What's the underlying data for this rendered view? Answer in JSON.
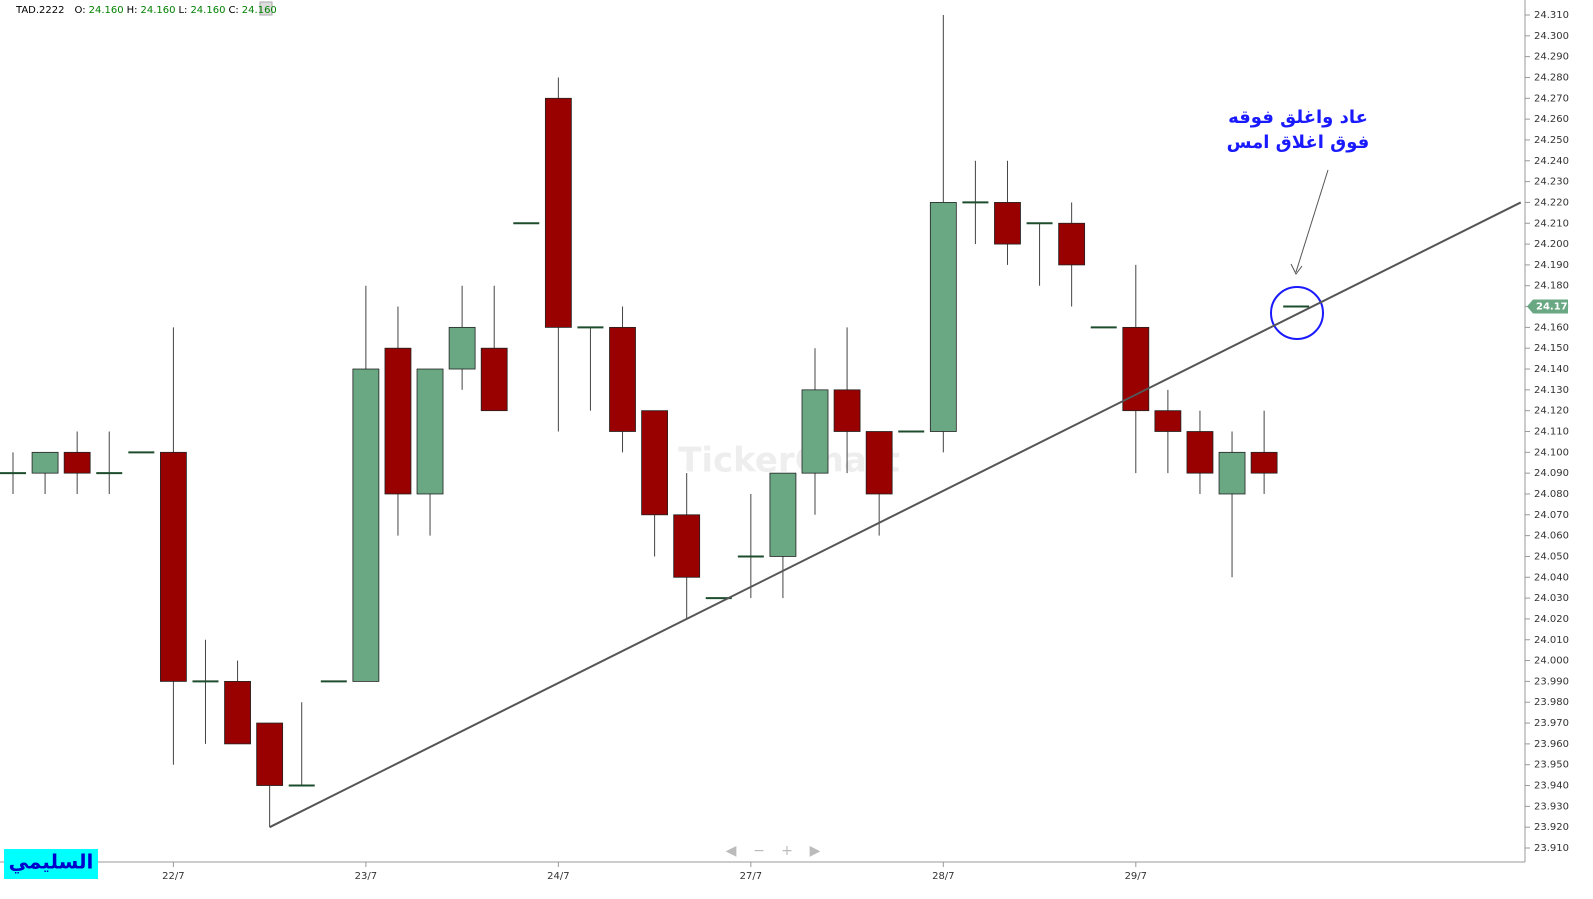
{
  "chart_data": {
    "type": "candlestick",
    "header": [
      "TAD.2222",
      "O:",
      "24.160",
      "H:",
      "24.160",
      "L:",
      "24.160",
      "C:",
      "24.160"
    ],
    "categories": [
      null,
      null,
      null,
      null,
      null,
      "22/7",
      null,
      null,
      null,
      null,
      null,
      "23/7",
      null,
      null,
      null,
      null,
      null,
      "24/7",
      null,
      null,
      null,
      null,
      null,
      "27/7",
      null,
      null,
      null,
      null,
      null,
      "28/7",
      null,
      null,
      null,
      null,
      null,
      "29/7",
      null,
      null,
      null,
      null,
      null
    ],
    "open": [
      24.09,
      24.09,
      24.1,
      24.09,
      24.1,
      24.1,
      23.99,
      23.99,
      23.97,
      23.94,
      23.99,
      23.99,
      24.15,
      24.08,
      24.14,
      24.15,
      24.21,
      24.27,
      24.16,
      24.16,
      24.12,
      24.07,
      24.03,
      24.05,
      24.05,
      24.09,
      24.13,
      24.11,
      24.11,
      24.11,
      24.22,
      24.22,
      24.21,
      24.21,
      24.16,
      24.16,
      24.12,
      24.11,
      24.08,
      24.1,
      24.17
    ],
    "high": [
      24.1,
      24.1,
      24.11,
      24.11,
      24.1,
      24.16,
      24.01,
      24.0,
      23.97,
      23.98,
      23.99,
      24.18,
      24.17,
      24.14,
      24.18,
      24.18,
      24.21,
      24.28,
      24.16,
      24.17,
      24.12,
      24.09,
      24.03,
      24.08,
      24.09,
      24.15,
      24.16,
      24.11,
      24.11,
      24.31,
      24.24,
      24.24,
      24.21,
      24.22,
      24.16,
      24.19,
      24.13,
      24.12,
      24.11,
      24.12,
      24.17
    ],
    "low": [
      24.08,
      24.08,
      24.08,
      24.08,
      24.1,
      23.95,
      23.96,
      23.96,
      23.92,
      23.94,
      23.99,
      23.99,
      24.06,
      24.06,
      24.13,
      24.12,
      24.21,
      24.11,
      24.12,
      24.1,
      24.05,
      24.02,
      24.03,
      24.03,
      24.03,
      24.07,
      24.09,
      24.06,
      24.11,
      24.1,
      24.2,
      24.19,
      24.18,
      24.17,
      24.16,
      24.09,
      24.09,
      24.08,
      24.04,
      24.08,
      24.17
    ],
    "close": [
      24.09,
      24.1,
      24.09,
      24.09,
      24.1,
      23.99,
      23.99,
      23.96,
      23.94,
      23.94,
      23.99,
      24.14,
      24.08,
      24.14,
      24.16,
      24.12,
      24.21,
      24.16,
      24.16,
      24.11,
      24.07,
      24.04,
      24.03,
      24.05,
      24.09,
      24.13,
      24.11,
      24.08,
      24.11,
      24.22,
      24.22,
      24.2,
      24.21,
      24.19,
      24.16,
      24.12,
      24.11,
      24.09,
      24.1,
      24.09,
      24.17
    ],
    "up_color": "#6aa884",
    "down_color": "#990000",
    "doji_color": "#1d4d2c",
    "ylim": [
      23.905,
      24.315
    ],
    "yticks": [
      {
        "value": 24.31,
        "label": "24.310"
      },
      {
        "value": 24.3,
        "label": "24.300"
      },
      {
        "value": 24.29,
        "label": "24.290"
      },
      {
        "value": 24.28,
        "label": "24.280"
      },
      {
        "value": 24.27,
        "label": "24.270"
      },
      {
        "value": 24.26,
        "label": "24.260"
      },
      {
        "value": 24.25,
        "label": "24.250"
      },
      {
        "value": 24.24,
        "label": "24.240"
      },
      {
        "value": 24.23,
        "label": "24.230"
      },
      {
        "value": 24.22,
        "label": "24.220"
      },
      {
        "value": 24.21,
        "label": "24.210"
      },
      {
        "value": 24.2,
        "label": "24.200"
      },
      {
        "value": 24.19,
        "label": "24.190"
      },
      {
        "value": 24.18,
        "label": "24.180"
      },
      {
        "value": 24.17,
        "label": "24.170"
      },
      {
        "value": 24.16,
        "label": "24.160"
      },
      {
        "value": 24.15,
        "label": "24.150"
      },
      {
        "value": 24.14,
        "label": "24.140"
      },
      {
        "value": 24.13,
        "label": "24.130"
      },
      {
        "value": 24.12,
        "label": "24.120"
      },
      {
        "value": 24.11,
        "label": "24.110"
      },
      {
        "value": 24.1,
        "label": "24.100"
      },
      {
        "value": 24.09,
        "label": "24.090"
      },
      {
        "value": 24.08,
        "label": "24.080"
      },
      {
        "value": 24.07,
        "label": "24.070"
      },
      {
        "value": 24.06,
        "label": "24.060"
      },
      {
        "value": 24.05,
        "label": "24.050"
      },
      {
        "value": 24.04,
        "label": "24.040"
      },
      {
        "value": 24.03,
        "label": "24.030"
      },
      {
        "value": 24.02,
        "label": "24.020"
      },
      {
        "value": 24.01,
        "label": "24.010"
      },
      {
        "value": 24.0,
        "label": "24.000"
      },
      {
        "value": 23.99,
        "label": "23.990"
      },
      {
        "value": 23.98,
        "label": "23.980"
      },
      {
        "value": 23.97,
        "label": "23.970"
      },
      {
        "value": 23.96,
        "label": "23.960"
      },
      {
        "value": 23.95,
        "label": "23.950"
      },
      {
        "value": 23.94,
        "label": "23.940"
      },
      {
        "value": 23.93,
        "label": "23.930"
      },
      {
        "value": 23.92,
        "label": "23.920"
      },
      {
        "value": 23.91,
        "label": "23.910"
      }
    ],
    "last_price": {
      "value": 24.17,
      "label": "24.170"
    },
    "trendline": {
      "x": [
        8,
        47
      ],
      "y": [
        23.92,
        24.22
      ]
    },
    "annotation": [
      "عاد واغلق فوقه",
      "فوق اغلاق امس"
    ],
    "watermark": "TickerChart",
    "author": "السليمي"
  }
}
